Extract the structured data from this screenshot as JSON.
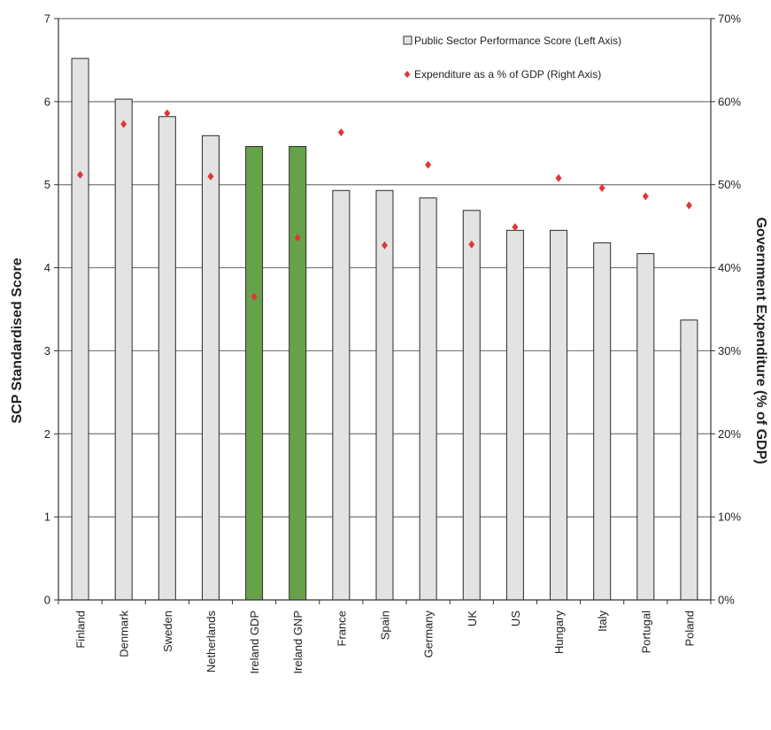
{
  "chart_data": {
    "type": "bar",
    "categories": [
      "Finland",
      "Denmark",
      "Sweden",
      "Netherlands",
      "Ireland  GDP",
      "Ireland GNP",
      "France",
      "Spain",
      "Germany",
      "UK",
      "US",
      "Hungary",
      "Italy",
      "Portugal",
      "Poland"
    ],
    "series": [
      {
        "name": "Public Sector Performance Score (Left Axis)",
        "type": "bar",
        "axis": "left",
        "values": [
          6.52,
          6.03,
          5.82,
          5.59,
          5.46,
          5.46,
          4.93,
          4.93,
          4.84,
          4.69,
          4.45,
          4.45,
          4.3,
          4.17,
          3.37
        ]
      },
      {
        "name": "Expenditure as a % of GDP (Right Axis)",
        "type": "scatter",
        "axis": "right",
        "values": [
          51.2,
          57.3,
          58.6,
          51.0,
          36.5,
          43.6,
          56.3,
          42.7,
          52.4,
          42.8,
          44.9,
          50.8,
          49.6,
          48.6,
          47.5
        ]
      }
    ],
    "highlighted_categories": [
      "Ireland  GDP",
      "Ireland GNP"
    ],
    "ylabel": "SCP Standardised Score",
    "y2label": "Government Expenditure (% of GDP)",
    "ylim": [
      0,
      7
    ],
    "y2lim": [
      0,
      70
    ],
    "yticks": [
      "0",
      "1",
      "2",
      "3",
      "4",
      "5",
      "6",
      "7"
    ],
    "y2ticks": [
      "0%",
      "10%",
      "20%",
      "30%",
      "40%",
      "50%",
      "60%",
      "70%"
    ],
    "grid": true,
    "legend_position": "top-right",
    "colors": {
      "bar": "#e3e3e3",
      "bar_highlight": "#66a24a",
      "marker": "#e0363a",
      "grid": "#7a7a7a",
      "axis": "#333333"
    }
  }
}
